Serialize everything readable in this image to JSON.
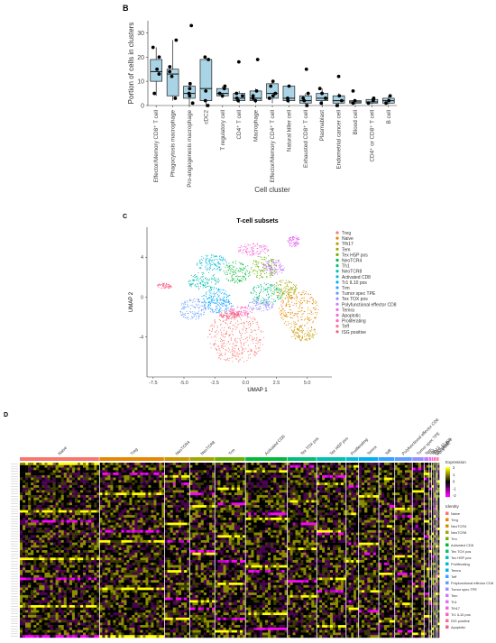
{
  "panels": {
    "b_label": "B",
    "c_label": "C",
    "d_label": "D"
  },
  "chart_data": [
    {
      "type": "box",
      "ylabel": "Portion of cells in clusters",
      "xlabel": "Cell cluster",
      "ylim": [
        0,
        35
      ],
      "yticks": [
        0,
        10,
        20,
        30
      ],
      "grid": false,
      "fill_color": "#a9d4e6",
      "categories": [
        "Effector/Memory CD8⁺ T cell",
        "Phagocytosis macrophage",
        "Pro-angiogenesis macrophage",
        "cDC2",
        "T regulatory cell",
        "CD4⁺ T cell",
        "Macrophage",
        "Effector/Memory CD4⁺ T cell",
        "Natural killer cell",
        "Exhausted CD8⁺ T cell",
        "Plasmablast",
        "Endometrial cancer cell",
        "Blood cell",
        "CD4⁺ or CD8⁺ T cell",
        "B cell"
      ],
      "boxes": [
        {
          "q1": 10,
          "median": 14,
          "q3": 19,
          "lo": 4,
          "hi": 24
        },
        {
          "q1": 4,
          "median": 13,
          "q3": 15,
          "lo": 2,
          "hi": 27
        },
        {
          "q1": 3,
          "median": 5,
          "q3": 8,
          "lo": 0,
          "hi": 9
        },
        {
          "q1": 2,
          "median": 7,
          "q3": 19,
          "lo": 0,
          "hi": 20
        },
        {
          "q1": 4,
          "median": 5,
          "q3": 7,
          "lo": 3,
          "hi": 8
        },
        {
          "q1": 2,
          "median": 3,
          "q3": 5,
          "lo": 1,
          "hi": 6
        },
        {
          "q1": 2,
          "median": 3,
          "q3": 6,
          "lo": 1,
          "hi": 7
        },
        {
          "q1": 3,
          "median": 5,
          "q3": 9,
          "lo": 1,
          "hi": 10
        },
        {
          "q1": 2,
          "median": 3,
          "q3": 8,
          "lo": 1,
          "hi": 8
        },
        {
          "q1": 1,
          "median": 2,
          "q3": 4,
          "lo": 0,
          "hi": 5
        },
        {
          "q1": 2,
          "median": 3,
          "q3": 5,
          "lo": 0,
          "hi": 7
        },
        {
          "q1": 1,
          "median": 2,
          "q3": 4,
          "lo": 0,
          "hi": 5
        },
        {
          "q1": 1,
          "median": 1.5,
          "q3": 2,
          "lo": 0.5,
          "hi": 2.5
        },
        {
          "q1": 1,
          "median": 1.5,
          "q3": 2.5,
          "lo": 0.5,
          "hi": 3
        },
        {
          "q1": 1,
          "median": 2,
          "q3": 3,
          "lo": 0.5,
          "hi": 4
        }
      ],
      "points": [
        [
          5,
          13,
          15,
          20,
          24
        ],
        [
          3,
          12,
          14,
          16,
          27
        ],
        [
          1,
          4,
          5,
          7,
          9,
          33
        ],
        [
          0,
          2,
          6,
          19,
          20
        ],
        [
          4,
          5,
          7,
          8
        ],
        [
          2,
          3,
          4,
          5,
          18
        ],
        [
          2,
          3,
          4,
          6,
          19
        ],
        [
          3,
          4,
          5,
          8,
          10
        ],
        [
          2,
          3,
          8
        ],
        [
          0,
          2,
          3,
          5,
          15
        ],
        [
          1,
          3,
          5,
          7
        ],
        [
          0,
          2,
          4,
          12
        ],
        [
          1,
          2,
          6
        ],
        [
          1,
          2,
          3
        ],
        [
          1,
          2,
          4
        ]
      ]
    },
    {
      "type": "scatter",
      "title": "T-cell subsets",
      "xlabel": "UMAP 1",
      "ylabel": "UMAP 2",
      "xlim": [
        -8,
        7
      ],
      "ylim": [
        -8,
        7
      ],
      "xticks": [
        -7.5,
        -5.0,
        -2.5,
        0.0,
        2.5,
        5.0
      ],
      "yticks": [
        -4,
        0,
        4
      ],
      "xtick_labels": [
        "-7.5",
        "-5.0",
        "-2.5",
        "0.0",
        "2.5",
        "5.0"
      ],
      "ytick_labels": [
        "-4",
        "0",
        "4"
      ],
      "legend": "right",
      "series": [
        {
          "name": "Treg",
          "color": "#f8766d",
          "cx": -0.8,
          "cy": -4.0,
          "rx": 2.3,
          "ry": 2.6
        },
        {
          "name": "Naive",
          "color": "#e58700",
          "cx": 4.3,
          "cy": -1.3,
          "rx": 1.6,
          "ry": 2.0
        },
        {
          "name": "Tfh17",
          "color": "#c99800",
          "cx": 4.7,
          "cy": -3.6,
          "rx": 1.1,
          "ry": 0.8
        },
        {
          "name": "Tem",
          "color": "#a3a500",
          "cx": 3.2,
          "cy": 0.8,
          "rx": 1.0,
          "ry": 1.0
        },
        {
          "name": "Tex HSP pos",
          "color": "#6bb100",
          "cx": 1.5,
          "cy": 3.0,
          "rx": 1.1,
          "ry": 1.2
        },
        {
          "name": "NeoTCR4",
          "color": "#00ba38",
          "cx": -0.7,
          "cy": 2.5,
          "rx": 1.1,
          "ry": 1.1
        },
        {
          "name": "Th1",
          "color": "#00bf7d",
          "cx": 1.7,
          "cy": 0.3,
          "rx": 1.3,
          "ry": 1.1
        },
        {
          "name": "NeoTCR8",
          "color": "#00c0af",
          "cx": -3.4,
          "cy": 1.6,
          "rx": 1.3,
          "ry": 0.9
        },
        {
          "name": "Activated CD8",
          "color": "#00bcd8",
          "cx": -2.7,
          "cy": 3.4,
          "rx": 1.3,
          "ry": 0.9
        },
        {
          "name": "Tr1 IL10 pos",
          "color": "#00b0f6",
          "cx": -2.4,
          "cy": 0.0,
          "rx": 1.2,
          "ry": 0.9
        },
        {
          "name": "Trm",
          "color": "#35a2ff",
          "cx": -2.2,
          "cy": -0.9,
          "rx": 1.2,
          "ry": 0.7
        },
        {
          "name": "Tumor spec TPE",
          "color": "#619cff",
          "cx": -4.3,
          "cy": -1.2,
          "rx": 1.1,
          "ry": 1.1
        },
        {
          "name": "Tex TOX pos",
          "color": "#9590ff",
          "cx": 1.3,
          "cy": -0.8,
          "rx": 1.1,
          "ry": 0.6
        },
        {
          "name": "Polyfunctional effector CD8",
          "color": "#c77cff",
          "cx": 2.3,
          "cy": 3.0,
          "rx": 0.9,
          "ry": 0.8
        },
        {
          "name": "Temra",
          "color": "#e76bf3",
          "cx": 3.9,
          "cy": 5.6,
          "rx": 0.5,
          "ry": 0.6
        },
        {
          "name": "Apoptotic",
          "color": "#fa62db",
          "cx": 0.6,
          "cy": 4.8,
          "rx": 1.3,
          "ry": 0.6
        },
        {
          "name": "Proliferating",
          "color": "#ff62bc",
          "cx": -0.4,
          "cy": -1.4,
          "rx": 1.0,
          "ry": 0.5
        },
        {
          "name": "Teff",
          "color": "#ff6c90",
          "cx": -6.6,
          "cy": 1.1,
          "rx": 0.6,
          "ry": 0.3
        },
        {
          "name": "ISG positive",
          "color": "#f0608e",
          "cx": -1.3,
          "cy": -1.8,
          "rx": 0.8,
          "ry": 0.4
        }
      ]
    },
    {
      "type": "heatmap",
      "groups": [
        {
          "name": "Naive",
          "frac": 0.19,
          "color": "#f8766d"
        },
        {
          "name": "Treg",
          "frac": 0.155,
          "color": "#e58700"
        },
        {
          "name": "NeoTCR4",
          "frac": 0.06,
          "color": "#c99800"
        },
        {
          "name": "NeoTCR8",
          "frac": 0.06,
          "color": "#a3a500"
        },
        {
          "name": "Trm",
          "frac": 0.073,
          "color": "#6bb100"
        },
        {
          "name": "Activated CD8",
          "frac": 0.1,
          "color": "#00ba38"
        },
        {
          "name": "Tex TOX pos",
          "frac": 0.07,
          "color": "#00bf7d"
        },
        {
          "name": "Tex HSP pos",
          "frac": 0.07,
          "color": "#00c0af"
        },
        {
          "name": "Proliferating",
          "frac": 0.03,
          "color": "#00bcd8"
        },
        {
          "name": "Temra",
          "frac": 0.048,
          "color": "#00b0f6"
        },
        {
          "name": "Teff",
          "frac": 0.038,
          "color": "#35a2ff"
        },
        {
          "name": "Polyfunctional effector CD8",
          "frac": 0.042,
          "color": "#619cff"
        },
        {
          "name": "Tumor spec TPE",
          "frac": 0.028,
          "color": "#9590ff"
        },
        {
          "name": "Tem",
          "frac": 0.012,
          "color": "#c77cff"
        },
        {
          "name": "Th1",
          "frac": 0.006,
          "color": "#e76bf3"
        },
        {
          "name": "Tfh17",
          "frac": 0.005,
          "color": "#fa62db"
        },
        {
          "name": "Tr1 IL10 pos",
          "frac": 0.005,
          "color": "#ff62bc"
        },
        {
          "name": "ISG positive",
          "frac": 0.004,
          "color": "#ff6c90"
        },
        {
          "name": "Apoptotic",
          "frac": 0.004,
          "color": "#f0608e"
        }
      ],
      "colorscale": {
        "title": "Expression",
        "ticks": [
          "2",
          "1",
          "0",
          "-1",
          "-2"
        ],
        "low": "#ff00ff",
        "mid": "#000000",
        "high": "#ffff00"
      },
      "legend_title": "Identity",
      "gene_count": 70
    }
  ]
}
